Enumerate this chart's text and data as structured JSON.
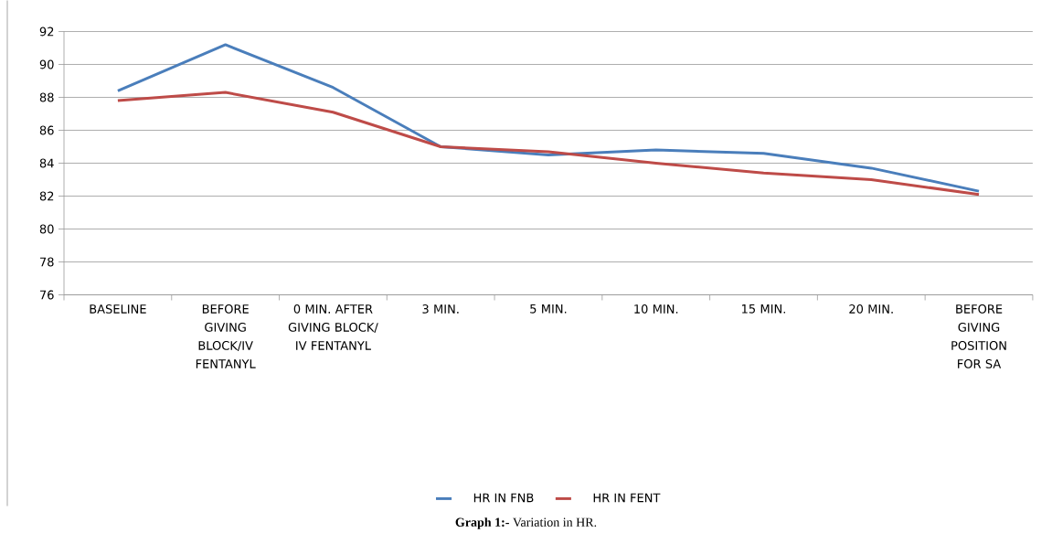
{
  "chart_data": {
    "type": "line",
    "categories": [
      "BASELINE",
      "BEFORE GIVING BLOCK/IV FENTANYL",
      "0 MIN. AFTER GIVING BLOCK/ IV FENTANYL",
      "3 MIN.",
      "5 MIN.",
      "10 MIN.",
      "15 MIN.",
      "20 MIN.",
      "BEFORE GIVING POSITION FOR SA"
    ],
    "series": [
      {
        "name": "HR IN FNB",
        "color": "#4a7ebb",
        "values": [
          88.4,
          91.2,
          88.6,
          85.0,
          84.5,
          84.8,
          84.6,
          83.7,
          82.3
        ]
      },
      {
        "name": "HR IN FENT",
        "color": "#be4b48",
        "values": [
          87.8,
          88.3,
          87.1,
          85.0,
          84.7,
          84.0,
          83.4,
          83.0,
          82.1
        ]
      }
    ],
    "ylim": [
      76,
      92
    ],
    "yticks": [
      76,
      78,
      80,
      82,
      84,
      86,
      88,
      90,
      92
    ],
    "grid": "y",
    "legend": "bottom",
    "marker": "none",
    "line_style": "solid",
    "annotations": [
      "**Graph 1:-** Variation in HR."
    ]
  }
}
